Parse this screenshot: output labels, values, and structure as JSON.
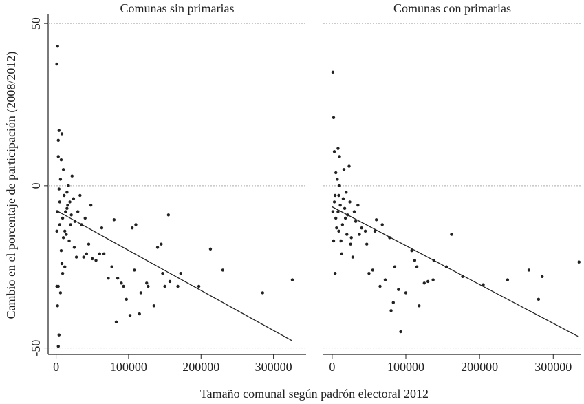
{
  "xlabel": "Tamaño comunal según padrón electoral 2012",
  "ylabel": "Cambio en el porcentaje de participación (2008/2012)",
  "chart_data": [
    {
      "type": "scatter",
      "title": "Comunas sin primarias",
      "color": "#222222",
      "xlim": [
        -11000,
        345000
      ],
      "ylim": [
        -52,
        53
      ],
      "xticks": [
        0,
        100000,
        200000,
        300000
      ],
      "yticks": [
        -50,
        0,
        50
      ],
      "grid": true,
      "x": [
        2000,
        1000,
        4000,
        3000,
        8000,
        326000,
        285000,
        230000,
        213000,
        197000,
        172000,
        168000,
        155000,
        157000,
        150000,
        147000,
        145000,
        140000,
        135000,
        127000,
        125000,
        117000,
        115000,
        110000,
        108000,
        105000,
        102000,
        97000,
        93000,
        90000,
        85000,
        83000,
        80000,
        77000,
        72000,
        66000,
        63000,
        60000,
        55000,
        50000,
        48000,
        45000,
        42000,
        40000,
        38000,
        35000,
        33000,
        30000,
        28000,
        25000,
        22000,
        20000,
        18000,
        15000,
        12000,
        10000,
        8000,
        6000,
        4000,
        3000,
        2000,
        1000,
        3000,
        5000,
        6000,
        7000,
        9000,
        11000,
        13000,
        14000,
        16000,
        17000,
        19000,
        21000,
        24000,
        26000,
        5000,
        2000,
        3000,
        4000,
        7000,
        9000,
        1000,
        10000,
        12000,
        15000
      ],
      "values": [
        43,
        37.5,
        17,
        14,
        16,
        -29,
        -33,
        -26,
        -19.5,
        -31,
        -27,
        -31,
        -9,
        -29.5,
        -31,
        -27,
        -18,
        -19,
        -37,
        -31,
        -30,
        -33,
        -39.5,
        -12,
        -26,
        -13,
        -40,
        -35,
        -31,
        -30,
        -28.5,
        -42,
        -10.5,
        -25,
        -28.5,
        -21,
        -13,
        -21,
        -23,
        -22.5,
        -6,
        -18,
        -21,
        -10,
        -22,
        -12,
        -3,
        -8,
        -22,
        -19,
        3,
        -12,
        -17,
        -2,
        -14,
        5,
        -24,
        -33,
        -46,
        -49.5,
        -37,
        -31,
        -31,
        -5,
        2,
        8,
        -10,
        -3,
        -8,
        -15,
        -6,
        0,
        -5,
        -9,
        -4,
        -11,
        -12,
        -8,
        9,
        -1,
        -20,
        -27,
        -14,
        -16,
        -25,
        -7
      ],
      "fit": {
        "x": [
          0,
          325000
        ],
        "values": [
          -7.6,
          -47.7
        ]
      }
    },
    {
      "type": "scatter",
      "title": "Comunas con primarias",
      "color": "#222222",
      "xlim": [
        -12000,
        338000
      ],
      "ylim": [
        -52,
        53
      ],
      "xticks": [
        0,
        100000,
        200000,
        300000
      ],
      "grid": true,
      "x": [
        1000,
        2000,
        3000,
        8000,
        10000,
        5000,
        335000,
        285000,
        280000,
        267000,
        238000,
        205000,
        177000,
        162000,
        155000,
        138000,
        137000,
        130000,
        125000,
        118000,
        115000,
        112000,
        108000,
        100000,
        93000,
        90000,
        85000,
        83000,
        80000,
        78000,
        72000,
        68000,
        65000,
        60000,
        58000,
        55000,
        50000,
        47000,
        45000,
        40000,
        37000,
        35000,
        32000,
        30000,
        28000,
        25000,
        23000,
        20000,
        18000,
        15000,
        12000,
        10000,
        8000,
        6000,
        4000,
        2000,
        3000,
        5000,
        7000,
        9000,
        11000,
        13000,
        14000,
        16000,
        17000,
        19000,
        21000,
        24000,
        26000,
        1000,
        4000,
        9000
      ],
      "values": [
        35,
        21,
        10.5,
        11.5,
        9,
        4,
        -23.5,
        -28,
        -35,
        -26,
        -29,
        -30.5,
        -28,
        -15,
        -25,
        -23,
        -29,
        -29.5,
        -30,
        -37,
        -25,
        -23,
        -20,
        -33,
        -45,
        -32,
        -25,
        -36,
        -38.5,
        -16,
        -29,
        -12,
        -31,
        -10.5,
        -14,
        -26,
        -27,
        -18,
        -14,
        -13,
        -15,
        -6,
        -11,
        -8,
        -22,
        -18,
        6,
        -15,
        -10,
        -4,
        -17,
        0,
        -8,
        -13,
        -27,
        -17,
        -5,
        -10,
        2,
        -3,
        -6,
        -21,
        -12,
        5,
        -7,
        -2,
        -9,
        -5,
        -16,
        -8,
        -3,
        -14
      ],
      "fit": {
        "x": [
          0,
          335000
        ],
        "values": [
          -6.5,
          -46.6
        ]
      }
    }
  ]
}
